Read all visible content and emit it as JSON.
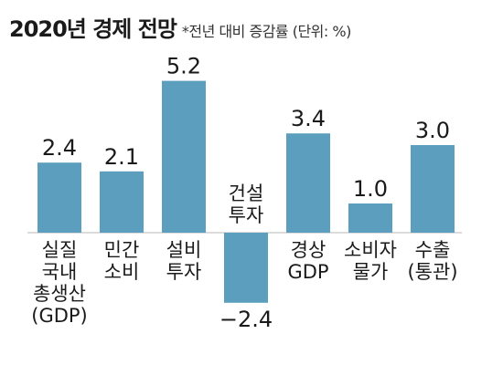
{
  "title": "2020년 경제 전망",
  "note": "*전년 대비 증감률 (단위: %)",
  "colors": {
    "bar": "#5b9ebd",
    "baseline": "#b9b9b9",
    "text": "#1a1a1a"
  },
  "chart_data": {
    "type": "bar",
    "title": "2020년 경제 전망",
    "subtitle": "*전년 대비 증감률 (단위: %)",
    "categories": [
      [
        "실질",
        "국내",
        "총생산",
        "(GDP)"
      ],
      [
        "민간",
        "소비"
      ],
      [
        "설비",
        "투자"
      ],
      [
        "건설",
        "투자"
      ],
      [
        "경상",
        "GDP"
      ],
      [
        "소비자",
        "물가"
      ],
      [
        "수출",
        "(통관)"
      ]
    ],
    "values": [
      2.4,
      2.1,
      5.2,
      -2.4,
      3.4,
      1.0,
      3.0
    ],
    "value_labels": [
      "2.4",
      "2.1",
      "5.2",
      "−2.4",
      "3.4",
      "1.0",
      "3.0"
    ],
    "ylim": [
      -2.4,
      5.2
    ],
    "grid": false,
    "legend": "none"
  }
}
